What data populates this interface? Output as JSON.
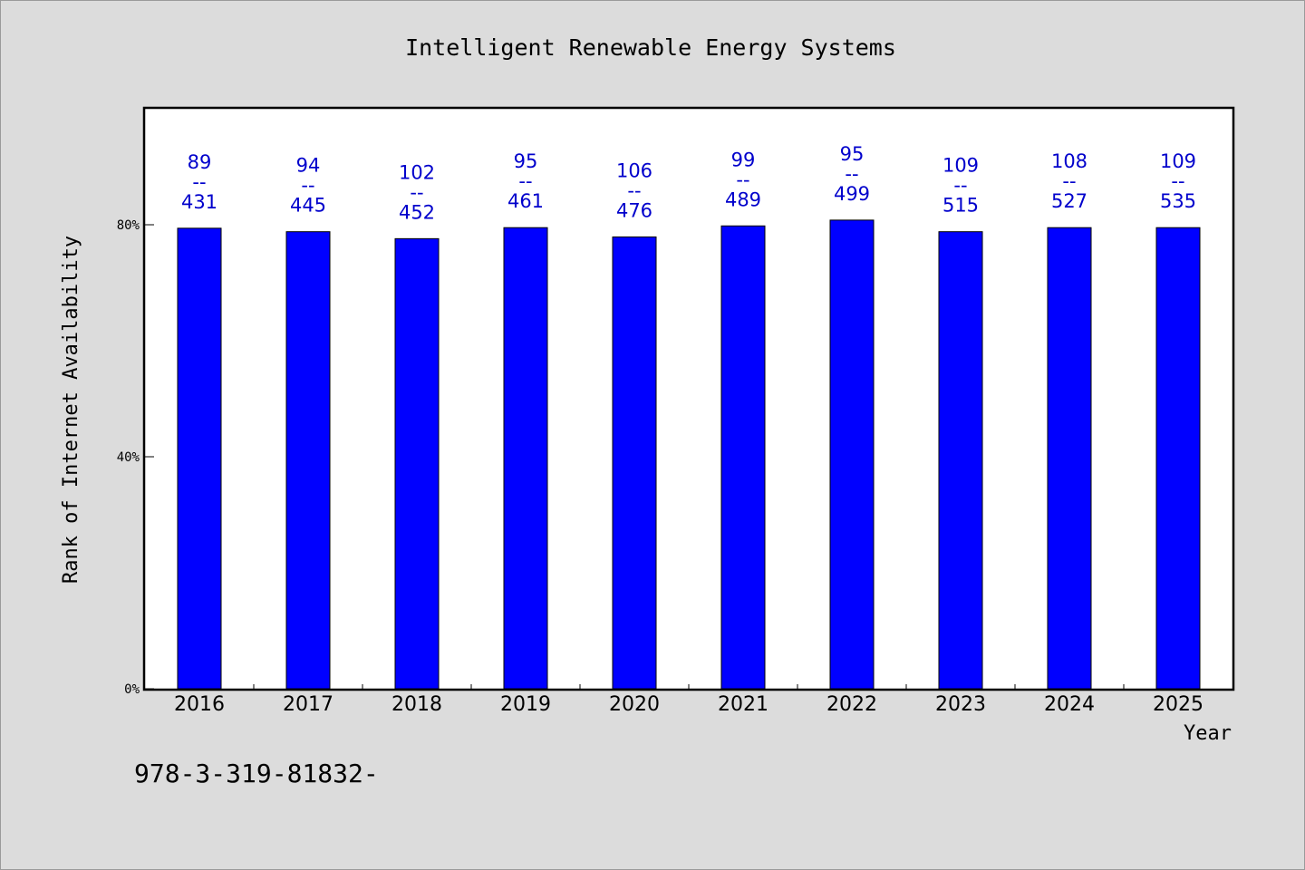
{
  "chart_data": {
    "type": "bar",
    "title": "Intelligent Renewable Energy Systems",
    "xlabel": "Year",
    "ylabel": "Rank of Internet Availability",
    "categories": [
      "2016",
      "2017",
      "2018",
      "2019",
      "2020",
      "2021",
      "2022",
      "2023",
      "2024",
      "2025"
    ],
    "values": [
      79.4,
      78.8,
      77.6,
      79.5,
      77.9,
      79.8,
      80.8,
      78.8,
      79.5,
      79.5
    ],
    "label_top": [
      "89",
      "94",
      "102",
      "95",
      "106",
      "99",
      "95",
      "109",
      "108",
      "109"
    ],
    "label_bottom": [
      "431",
      "445",
      "452",
      "461",
      "476",
      "489",
      "499",
      "515",
      "527",
      "535"
    ],
    "label_separator": "--",
    "ylim": [
      0,
      100
    ],
    "yticks": [
      0,
      40,
      80
    ],
    "ytick_labels": [
      "0%",
      "40%",
      "80%"
    ],
    "grid": false,
    "bar_color": "#0000ff",
    "label_color": "#0000cc"
  },
  "footer_text": "978-3-319-81832-"
}
